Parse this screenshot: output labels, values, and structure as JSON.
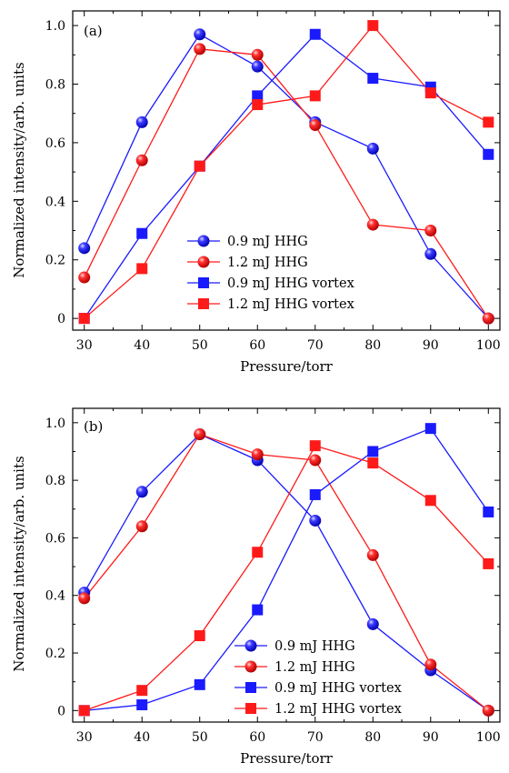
{
  "chart_data": [
    {
      "type": "line",
      "panel_label": "(a)",
      "xlabel": "Pressure/torr",
      "ylabel": "Normalized intensity/arb. units",
      "x": [
        30,
        40,
        50,
        60,
        70,
        80,
        90,
        100
      ],
      "xticks": [
        "30",
        "40",
        "50",
        "60",
        "70",
        "80",
        "90",
        "100"
      ],
      "yticks": [
        "0",
        "0.2",
        "0.4",
        "0.6",
        "0.8",
        "1.0"
      ],
      "xlim": [
        28,
        102
      ],
      "ylim": [
        -0.04,
        1.05
      ],
      "legend_position": "lower-center",
      "series": [
        {
          "name": "0.9 mJ HHG",
          "color": "#1a1aff",
          "marker": "circle",
          "values": [
            0.24,
            0.67,
            0.97,
            0.86,
            0.67,
            0.58,
            0.22,
            0.0
          ]
        },
        {
          "name": "1.2 mJ HHG",
          "color": "#ff1a1a",
          "marker": "circle",
          "values": [
            0.14,
            0.54,
            0.92,
            0.9,
            0.66,
            0.32,
            0.3,
            0.0
          ]
        },
        {
          "name": "0.9 mJ HHG vortex",
          "color": "#1a1aff",
          "marker": "square",
          "values": [
            0.0,
            0.29,
            0.52,
            0.76,
            0.97,
            0.82,
            0.79,
            0.56
          ]
        },
        {
          "name": "1.2 mJ HHG vortex",
          "color": "#ff1a1a",
          "marker": "square",
          "values": [
            0.0,
            0.17,
            0.52,
            0.73,
            0.76,
            1.0,
            0.77,
            0.67
          ]
        }
      ]
    },
    {
      "type": "line",
      "panel_label": "(b)",
      "xlabel": "Pressure/torr",
      "ylabel": "Normalized intensity/arb. units",
      "x": [
        30,
        40,
        50,
        60,
        70,
        80,
        90,
        100
      ],
      "xticks": [
        "30",
        "40",
        "50",
        "60",
        "70",
        "80",
        "90",
        "100"
      ],
      "yticks": [
        "0",
        "0.2",
        "0.4",
        "0.6",
        "0.8",
        "1.0"
      ],
      "xlim": [
        28,
        102
      ],
      "ylim": [
        -0.04,
        1.05
      ],
      "legend_position": "lower-center",
      "series": [
        {
          "name": "0.9 mJ HHG",
          "color": "#1a1aff",
          "marker": "circle",
          "values": [
            0.41,
            0.76,
            0.96,
            0.87,
            0.66,
            0.3,
            0.14,
            0.0
          ]
        },
        {
          "name": "1.2 mJ HHG",
          "color": "#ff1a1a",
          "marker": "circle",
          "values": [
            0.39,
            0.64,
            0.96,
            0.89,
            0.87,
            0.54,
            0.16,
            0.0
          ]
        },
        {
          "name": "0.9 mJ HHG vortex",
          "color": "#1a1aff",
          "marker": "square",
          "values": [
            0.0,
            0.02,
            0.09,
            0.35,
            0.75,
            0.9,
            0.98,
            0.69
          ]
        },
        {
          "name": "1.2 mJ HHG vortex",
          "color": "#ff1a1a",
          "marker": "square",
          "values": [
            0.0,
            0.07,
            0.26,
            0.55,
            0.92,
            0.86,
            0.73,
            0.51
          ]
        }
      ]
    }
  ]
}
